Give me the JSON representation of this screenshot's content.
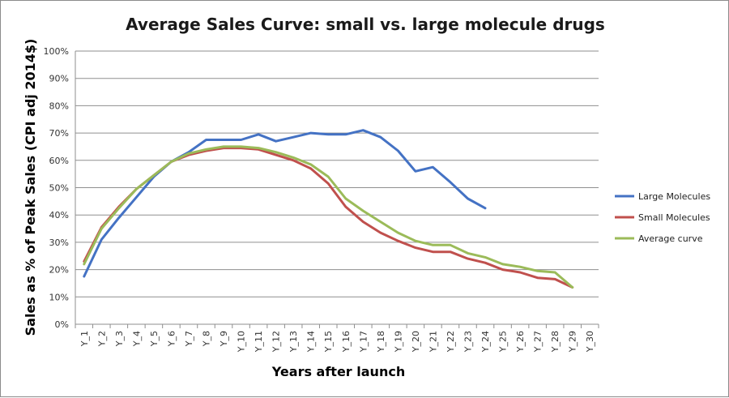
{
  "chart_data": {
    "type": "line",
    "title": "Average Sales Curve: small vs. large molecule drugs",
    "xlabel": "Years after launch",
    "ylabel": "Sales as % of Peak Sales (CPI adj 2014$)",
    "ylim": [
      0,
      100
    ],
    "y_ticks": [
      "0%",
      "10%",
      "20%",
      "30%",
      "40%",
      "50%",
      "60%",
      "70%",
      "80%",
      "90%",
      "100%"
    ],
    "grid": true,
    "legend_position": "right",
    "categories": [
      "Y_1",
      "Y_2",
      "Y_3",
      "Y_4",
      "Y_5",
      "Y_6",
      "Y_7",
      "Y_8",
      "Y_9",
      "Y_10",
      "Y_11",
      "Y_12",
      "Y_13",
      "Y_14",
      "Y_15",
      "Y_16",
      "Y_17",
      "Y_18",
      "Y_19",
      "Y_20",
      "Y_21",
      "Y_22",
      "Y_23",
      "Y_24",
      "Y_25",
      "Y_26",
      "Y_27",
      "Y_28",
      "Y_29",
      "Y_30"
    ],
    "series": [
      {
        "name": "Large Molecules",
        "color": "#4472c4",
        "values": [
          17.5,
          31,
          39,
          46.5,
          54,
          59.5,
          63,
          67.5,
          67.5,
          67.5,
          69.5,
          67,
          68.5,
          70,
          69.5,
          69.5,
          71,
          68.5,
          63.5,
          56,
          57.5,
          52,
          46,
          42.5,
          null,
          null,
          null,
          null,
          null,
          null
        ]
      },
      {
        "name": "Small Molecules",
        "color": "#c0504d",
        "values": [
          23,
          35.5,
          43,
          49.5,
          54.5,
          59.5,
          62,
          63.5,
          64.5,
          64.5,
          64,
          62,
          60,
          57,
          51.5,
          43,
          37.5,
          33.5,
          30.5,
          28,
          26.5,
          26.5,
          24,
          22.5,
          20,
          19,
          17,
          16.5,
          13.5,
          null
        ]
      },
      {
        "name": "Average curve",
        "color": "#9bbb59",
        "values": [
          22,
          35,
          42.5,
          49.5,
          54.5,
          59.5,
          62.5,
          64,
          65,
          65,
          64.5,
          63,
          61,
          58.5,
          54,
          46,
          41.5,
          37.5,
          33.5,
          30.5,
          29,
          29,
          26,
          24.5,
          22,
          21,
          19.5,
          19,
          13.5,
          null
        ]
      }
    ]
  }
}
